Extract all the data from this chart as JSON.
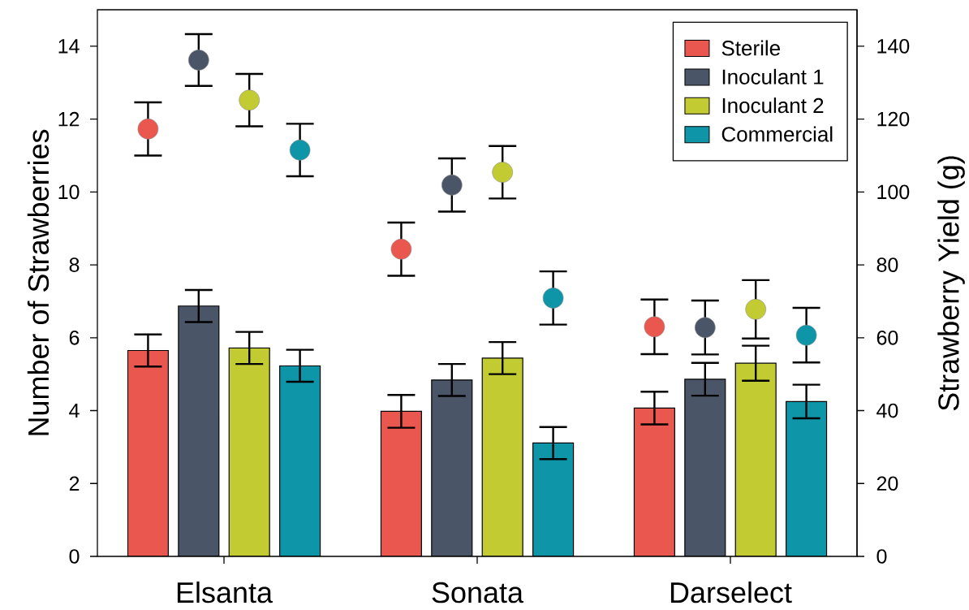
{
  "chart_data": {
    "type": "bar",
    "categories": [
      "Elsanta",
      "Sonata",
      "Darselect"
    ],
    "ylabel": "Number of Strawberries",
    "y2label": "Strawberry Yield (g)",
    "ylim": [
      0,
      15
    ],
    "yticks": [
      0,
      2,
      4,
      6,
      8,
      10,
      12,
      14
    ],
    "y2lim": [
      0,
      150
    ],
    "y2ticks": [
      0,
      20,
      40,
      60,
      80,
      100,
      120,
      140
    ],
    "legend": "top right",
    "marker": "circle",
    "series": [
      {
        "name": "Sterile",
        "axis": "y2",
        "color": "#e9574f",
        "values": [
          56.5,
          39.8,
          40.7
        ],
        "errors": [
          4.4,
          4.5,
          4.5
        ]
      },
      {
        "name": "Inoculant 1",
        "axis": "y2",
        "color": "#4a5567",
        "values": [
          68.7,
          48.4,
          48.6
        ],
        "errors": [
          4.4,
          4.4,
          4.5
        ]
      },
      {
        "name": "Inoculant 2",
        "axis": "y2",
        "color": "#c3cb33",
        "values": [
          57.2,
          54.4,
          53
        ],
        "errors": [
          4.4,
          4.4,
          4.8
        ]
      },
      {
        "name": "Commercial",
        "axis": "y2",
        "color": "#0e96a8",
        "values": [
          52.3,
          31.1,
          42.5
        ],
        "errors": [
          4.4,
          4.4,
          4.6
        ]
      },
      {
        "type": "scatter",
        "color": "#e9574f",
        "values": [
          11.73,
          8.43,
          6.3
        ],
        "errors": [
          0.73,
          0.73,
          0.75
        ]
      },
      {
        "type": "scatter",
        "color": "#4a5567",
        "values": [
          13.62,
          10.19,
          6.28
        ],
        "errors": [
          0.71,
          0.73,
          0.74
        ]
      },
      {
        "type": "scatter",
        "color": "#c3cb33",
        "values": [
          12.52,
          10.54,
          6.78
        ],
        "errors": [
          0.72,
          0.72,
          0.8
        ]
      },
      {
        "type": "scatter",
        "color": "#0e96a8",
        "values": [
          11.15,
          7.09,
          6.07
        ],
        "errors": [
          0.72,
          0.73,
          0.75
        ]
      }
    ]
  }
}
